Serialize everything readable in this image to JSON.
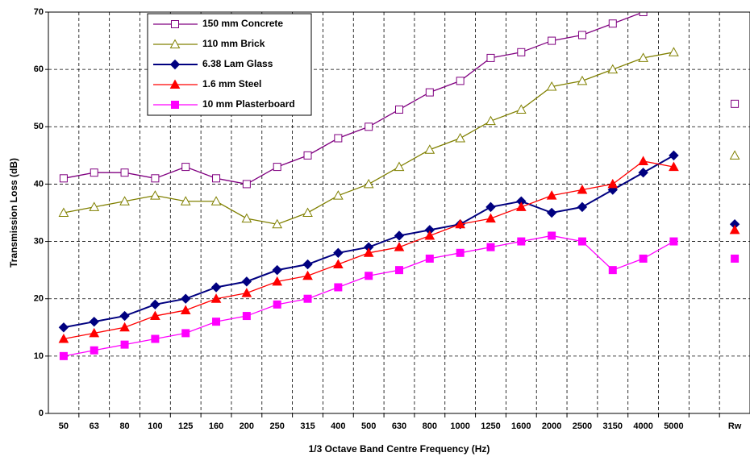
{
  "chart_data": {
    "type": "line",
    "x_label": "1/3 Octave Band Centre Frequency (Hz)",
    "y_label": "Transmission Loss (dB)",
    "categories": [
      "50",
      "63",
      "80",
      "100",
      "125",
      "160",
      "200",
      "250",
      "315",
      "400",
      "500",
      "630",
      "800",
      "1000",
      "1250",
      "1600",
      "2000",
      "2500",
      "3150",
      "4000",
      "5000",
      null,
      "Rw"
    ],
    "series": [
      {
        "name": "150 mm Concrete",
        "color": "#800080",
        "marker": "square-open",
        "values": [
          41,
          42,
          42,
          41,
          43,
          41,
          40,
          43,
          45,
          48,
          50,
          53,
          56,
          58,
          62,
          63,
          65,
          66,
          68,
          70,
          71,
          null,
          54
        ]
      },
      {
        "name": "110 mm Brick",
        "color": "#808000",
        "marker": "triangle-open",
        "values": [
          35,
          36,
          37,
          38,
          37,
          37,
          34,
          33,
          35,
          38,
          40,
          43,
          46,
          48,
          51,
          53,
          57,
          58,
          60,
          62,
          63,
          null,
          45
        ]
      },
      {
        "name": "6.38 Lam Glass",
        "color": "#000080",
        "marker": "diamond",
        "values": [
          15,
          16,
          17,
          19,
          20,
          22,
          23,
          25,
          26,
          28,
          29,
          31,
          32,
          33,
          36,
          37,
          35,
          36,
          39,
          42,
          45,
          null,
          33
        ]
      },
      {
        "name": "1.6 mm Steel",
        "color": "#ff0000",
        "marker": "triangle",
        "values": [
          13,
          14,
          15,
          17,
          18,
          20,
          21,
          23,
          24,
          26,
          28,
          29,
          31,
          33,
          34,
          36,
          38,
          39,
          40,
          44,
          43,
          null,
          32
        ]
      },
      {
        "name": "10 mm Plasterboard",
        "color": "#ff00ff",
        "marker": "square",
        "values": [
          10,
          11,
          12,
          13,
          14,
          16,
          17,
          19,
          20,
          22,
          24,
          25,
          27,
          28,
          29,
          30,
          31,
          30,
          25,
          27,
          30,
          null,
          27
        ]
      }
    ],
    "ylim": [
      0,
      70
    ],
    "yticks": [
      0,
      10,
      20,
      30,
      40,
      50,
      60,
      70
    ],
    "grid": true,
    "legend": "top-left"
  }
}
